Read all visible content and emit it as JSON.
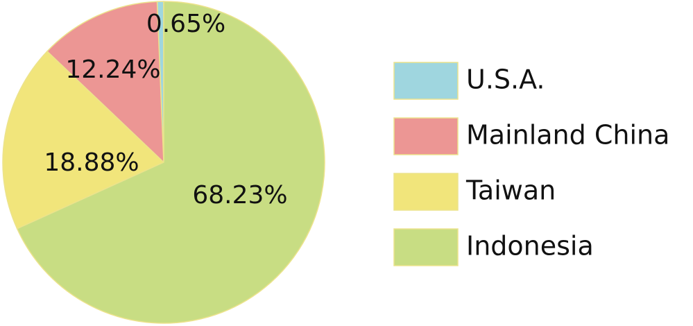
{
  "chart_data": {
    "type": "pie",
    "categories": [
      "U.S.A.",
      "Mainland China",
      "Taiwan",
      "Indonesia"
    ],
    "values": [
      0.65,
      12.24,
      18.88,
      68.23
    ],
    "value_labels": [
      "0.65%",
      "12.24%",
      "18.88%",
      "68.23%"
    ],
    "colors": [
      "#9fd6df",
      "#ec9694",
      "#f1e57b",
      "#c8dd83"
    ]
  }
}
